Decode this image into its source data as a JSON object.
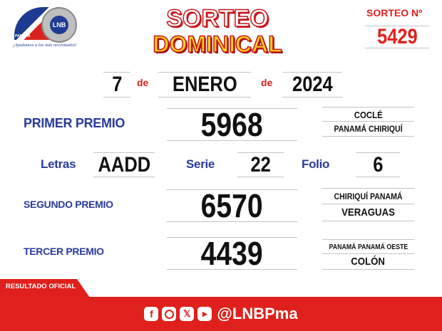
{
  "header": {
    "logo": {
      "text": "LNB",
      "country": "PANAMÁ",
      "slogan": "¡Ayudamos a los más necesitados!"
    },
    "title_line1": "SORTEO",
    "title_line2": "DOMINICAL",
    "sorteo_label": "SORTEO Nº",
    "sorteo_number": "5429"
  },
  "date": {
    "day": "7",
    "de1": "de",
    "month": "ENERO",
    "de2": "de",
    "year": "2024"
  },
  "primer": {
    "label": "PRIMER PREMIO",
    "number": "5968",
    "prov1": "COCLÉ",
    "prov2": "PANAMÁ  CHIRIQUÍ"
  },
  "details": {
    "letras_label": "Letras",
    "letras": "AADD",
    "serie_label": "Serie",
    "serie": "22",
    "folio_label": "Folio",
    "folio": "6"
  },
  "segundo": {
    "label": "SEGUNDO PREMIO",
    "number": "6570",
    "prov1": "CHIRIQUÍ  PANAMÁ",
    "prov2": "VERAGUAS"
  },
  "tercer": {
    "label": "TERCER PREMIO",
    "number": "4439",
    "prov1": "PANAMÁ  PANAMÁ OESTE",
    "prov2": "COLÓN"
  },
  "footer": {
    "tab": "RESULTADO OFICIAL",
    "handle": "@LNBPma",
    "icons": [
      "facebook-icon",
      "instagram-icon",
      "x-icon",
      "youtube-icon"
    ],
    "color": "#e0201c"
  }
}
